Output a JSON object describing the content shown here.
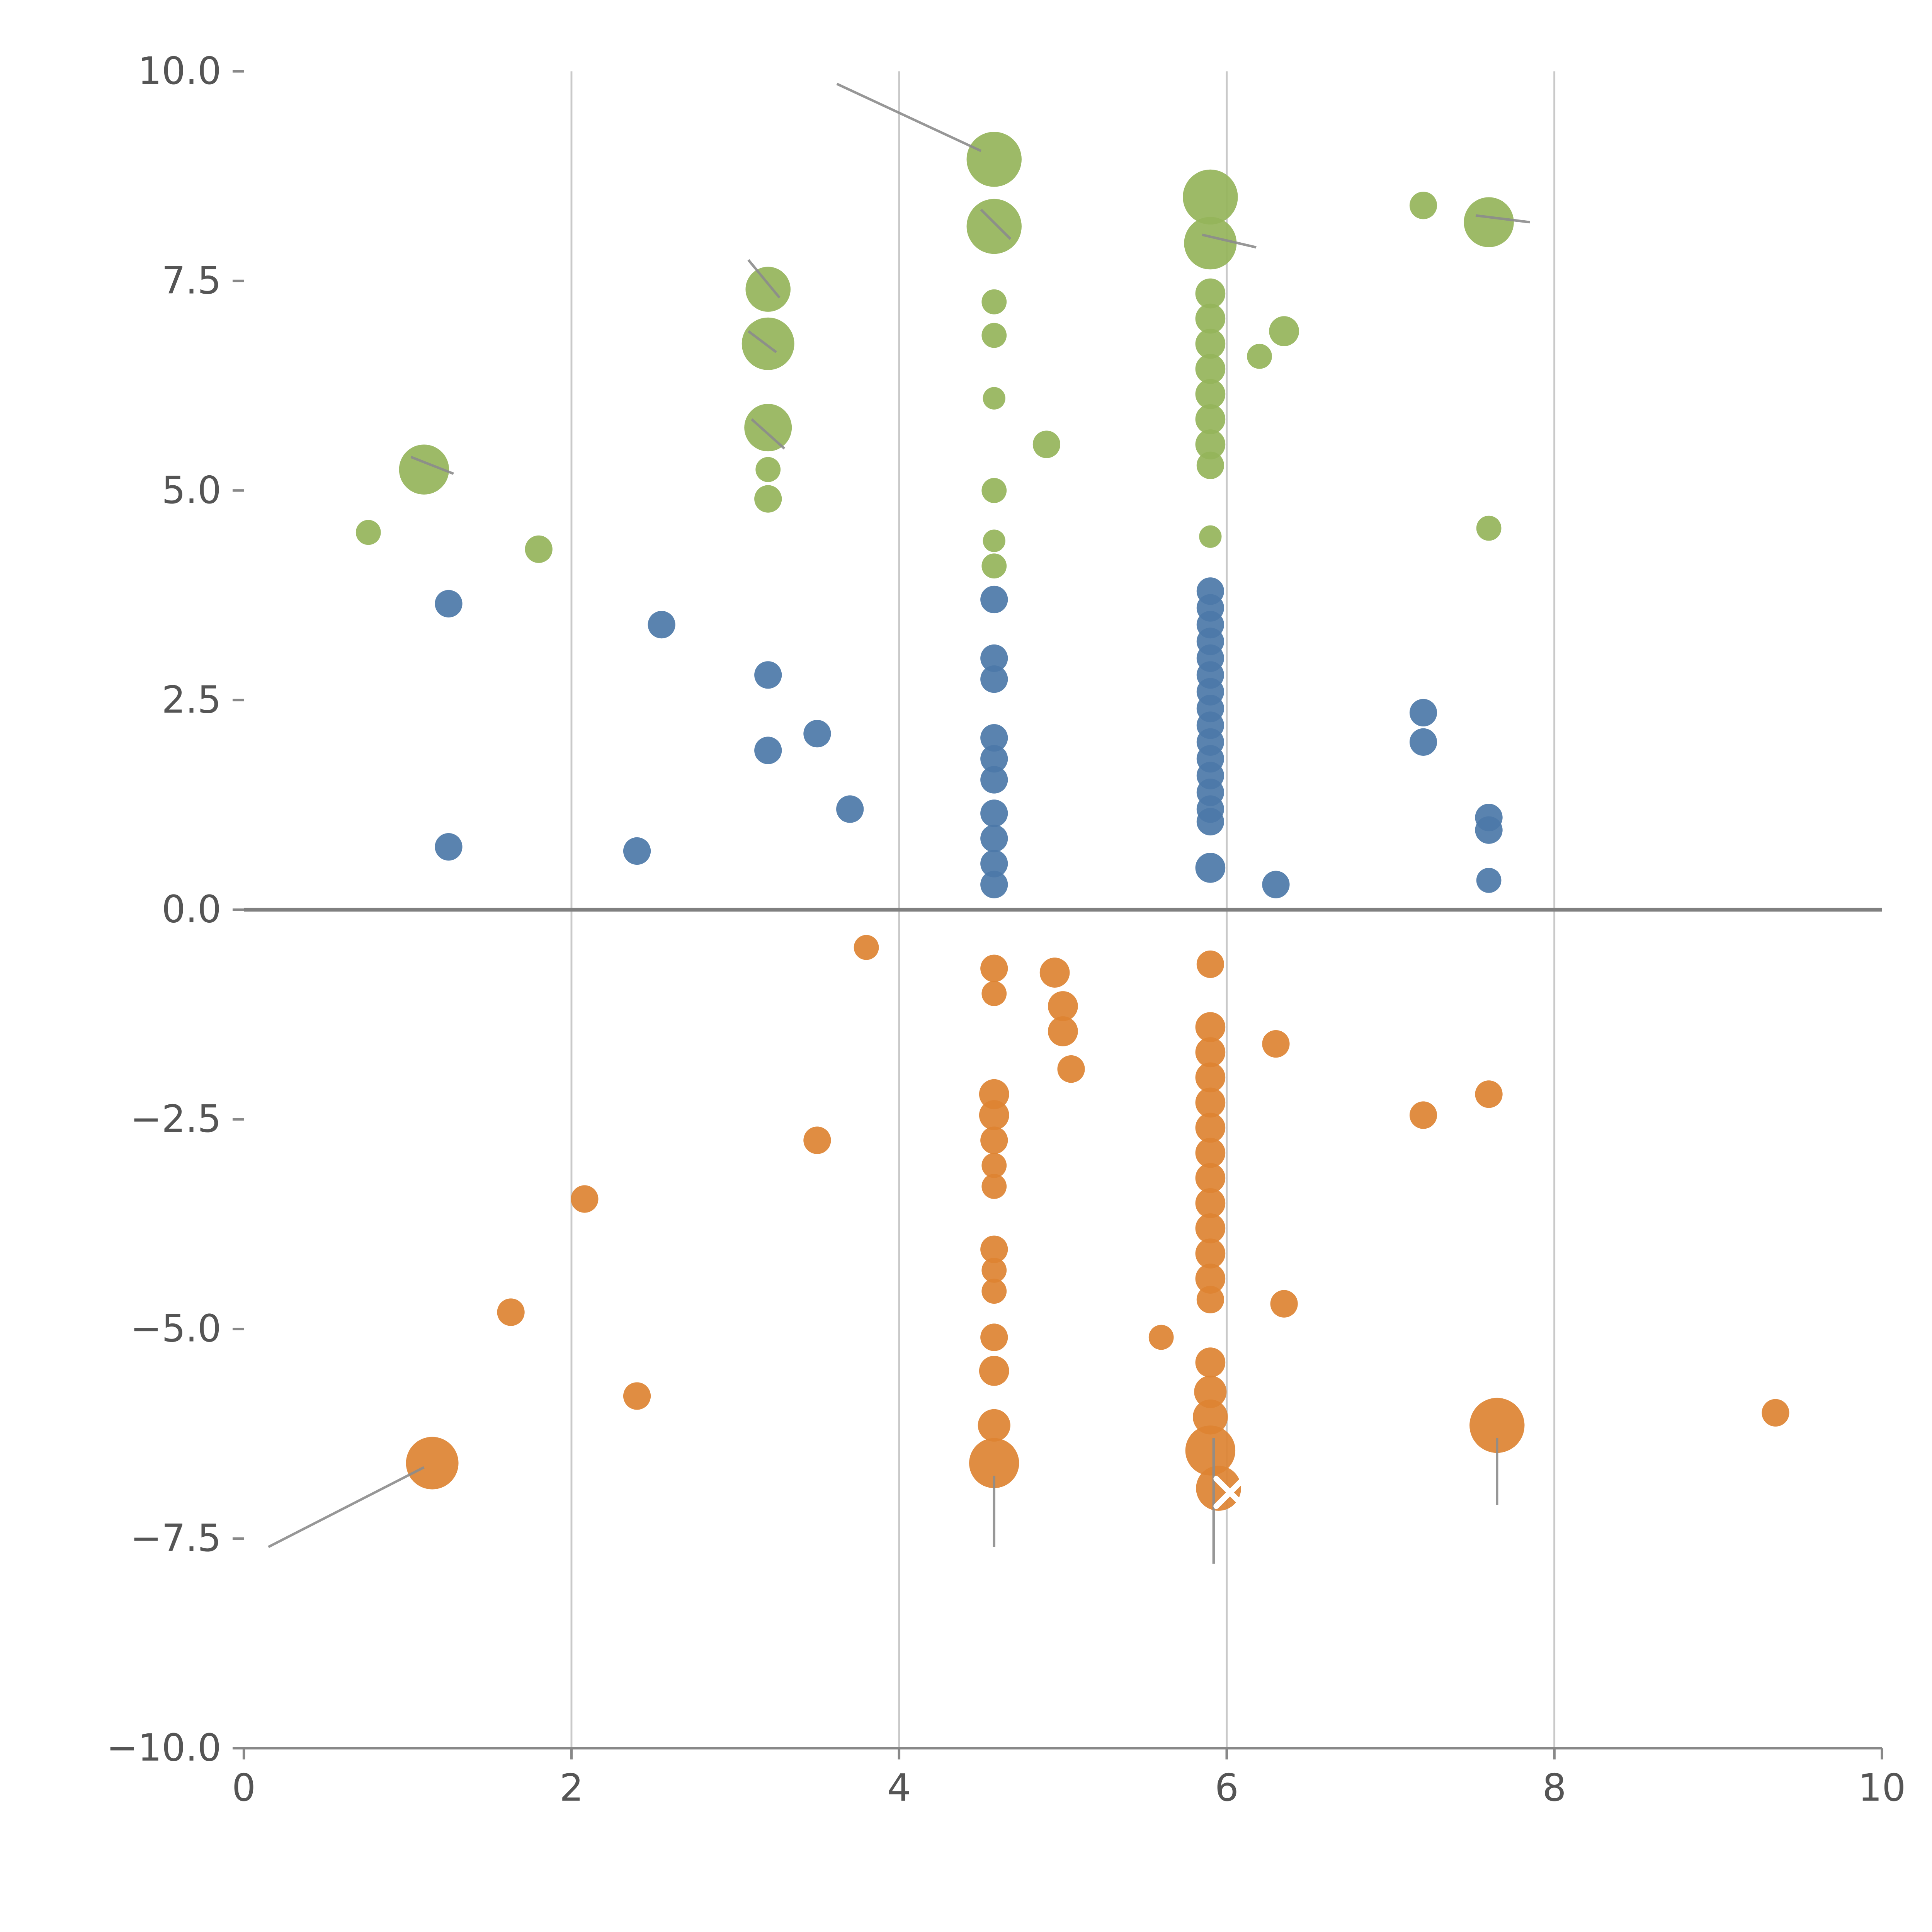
{
  "chart_data": {
    "type": "scatter",
    "title": "",
    "xlabel": "",
    "ylabel": "",
    "xlim": [
      0,
      10
    ],
    "ylim": [
      -10,
      10
    ],
    "x_ticks": [
      0,
      2,
      4,
      6,
      8,
      10
    ],
    "x_tick_labels": [
      "0",
      "2",
      "4",
      "6",
      "8",
      "10"
    ],
    "y_ticks": [
      10.0,
      7.5,
      5.0,
      2.5,
      0.0,
      -2.5,
      -5.0,
      -7.5,
      -10.0
    ],
    "y_tick_labels": [
      "10.0",
      "7.5",
      "5.0",
      "2.5",
      "0.0",
      "−2.5",
      "−5.0",
      "−7.5",
      "−10.0"
    ],
    "grid": {
      "vertical_x": [
        2,
        4,
        6,
        8
      ],
      "color": "#c9c9c9"
    },
    "zero_line": {
      "y": 0,
      "color": "#808080",
      "width": 3
    },
    "spine_color": "#888888",
    "tick_color": "#555555",
    "legend_position": "none",
    "series": [
      {
        "name": "green-bubbles",
        "color": "#95b45a",
        "points": [
          [
            0.76,
            4.5,
            10
          ],
          [
            1.1,
            5.25,
            20
          ],
          [
            1.8,
            4.3,
            11
          ],
          [
            3.2,
            7.4,
            18
          ],
          [
            3.2,
            6.75,
            21
          ],
          [
            3.2,
            5.75,
            19
          ],
          [
            3.2,
            5.25,
            10
          ],
          [
            3.2,
            4.9,
            11
          ],
          [
            4.58,
            8.95,
            22
          ],
          [
            4.58,
            8.15,
            22
          ],
          [
            4.58,
            7.25,
            10
          ],
          [
            4.58,
            6.85,
            10
          ],
          [
            4.58,
            6.1,
            9
          ],
          [
            4.58,
            5.0,
            10
          ],
          [
            4.58,
            4.4,
            9
          ],
          [
            4.58,
            4.1,
            10
          ],
          [
            4.9,
            5.55,
            11
          ],
          [
            5.9,
            8.5,
            22
          ],
          [
            5.9,
            7.95,
            21
          ],
          [
            5.9,
            7.35,
            12
          ],
          [
            5.9,
            7.05,
            12
          ],
          [
            5.9,
            6.75,
            12
          ],
          [
            5.9,
            6.45,
            12
          ],
          [
            5.9,
            6.15,
            12
          ],
          [
            5.9,
            5.85,
            12
          ],
          [
            5.9,
            5.55,
            12
          ],
          [
            5.9,
            5.3,
            11
          ],
          [
            5.9,
            4.45,
            9
          ],
          [
            6.2,
            6.6,
            10
          ],
          [
            6.35,
            6.9,
            12
          ],
          [
            7.2,
            8.4,
            11
          ],
          [
            7.6,
            8.2,
            20
          ],
          [
            7.6,
            4.55,
            10
          ]
        ]
      },
      {
        "name": "blue-bubbles",
        "color": "#4c78a8",
        "points": [
          [
            1.25,
            3.65,
            11
          ],
          [
            1.25,
            0.75,
            11
          ],
          [
            2.4,
            0.7,
            11
          ],
          [
            2.55,
            3.4,
            11
          ],
          [
            3.2,
            2.8,
            11
          ],
          [
            3.2,
            1.9,
            11
          ],
          [
            3.5,
            2.1,
            11
          ],
          [
            3.7,
            1.2,
            11
          ],
          [
            4.58,
            3.7,
            11
          ],
          [
            4.58,
            3.0,
            11
          ],
          [
            4.58,
            2.75,
            11
          ],
          [
            4.58,
            2.05,
            11
          ],
          [
            4.58,
            1.8,
            11
          ],
          [
            4.58,
            1.55,
            11
          ],
          [
            4.58,
            1.15,
            11
          ],
          [
            4.58,
            0.85,
            11
          ],
          [
            4.58,
            0.55,
            11
          ],
          [
            4.58,
            0.3,
            11
          ],
          [
            5.9,
            3.8,
            11
          ],
          [
            5.9,
            3.6,
            11
          ],
          [
            5.9,
            3.4,
            11
          ],
          [
            5.9,
            3.2,
            11
          ],
          [
            5.9,
            3.0,
            11
          ],
          [
            5.9,
            2.8,
            11
          ],
          [
            5.9,
            2.6,
            11
          ],
          [
            5.9,
            2.4,
            11
          ],
          [
            5.9,
            2.2,
            11
          ],
          [
            5.9,
            2.0,
            11
          ],
          [
            5.9,
            1.8,
            11
          ],
          [
            5.9,
            1.6,
            11
          ],
          [
            5.9,
            1.4,
            11
          ],
          [
            5.9,
            1.2,
            11
          ],
          [
            5.9,
            1.05,
            11
          ],
          [
            5.9,
            0.5,
            12
          ],
          [
            6.3,
            0.3,
            11
          ],
          [
            7.2,
            2.35,
            11
          ],
          [
            7.2,
            2.0,
            11
          ],
          [
            7.6,
            1.1,
            11
          ],
          [
            7.6,
            0.95,
            11
          ],
          [
            7.6,
            0.35,
            10
          ]
        ]
      },
      {
        "name": "orange-bubbles",
        "color": "#dd8332",
        "points": [
          [
            1.15,
            -6.6,
            21
          ],
          [
            1.63,
            -4.8,
            11
          ],
          [
            2.08,
            -3.45,
            11
          ],
          [
            2.4,
            -5.8,
            11
          ],
          [
            3.5,
            -2.75,
            11
          ],
          [
            3.8,
            -0.45,
            10
          ],
          [
            4.58,
            -0.7,
            11
          ],
          [
            4.58,
            -1.0,
            10
          ],
          [
            4.58,
            -2.2,
            12
          ],
          [
            4.58,
            -2.45,
            12
          ],
          [
            4.58,
            -2.75,
            11
          ],
          [
            4.58,
            -3.05,
            10
          ],
          [
            4.58,
            -3.3,
            10
          ],
          [
            4.58,
            -4.05,
            11
          ],
          [
            4.58,
            -4.3,
            10
          ],
          [
            4.58,
            -4.55,
            10
          ],
          [
            4.58,
            -5.1,
            11
          ],
          [
            4.58,
            -5.5,
            12
          ],
          [
            4.58,
            -6.15,
            13
          ],
          [
            4.58,
            -6.6,
            20
          ],
          [
            4.95,
            -0.75,
            12
          ],
          [
            5.0,
            -1.15,
            12
          ],
          [
            5.0,
            -1.45,
            12
          ],
          [
            5.05,
            -1.9,
            11
          ],
          [
            5.6,
            -5.1,
            10
          ],
          [
            5.9,
            -0.65,
            11
          ],
          [
            5.9,
            -1.4,
            12
          ],
          [
            5.9,
            -1.7,
            12
          ],
          [
            5.9,
            -2.0,
            12
          ],
          [
            5.9,
            -2.3,
            12
          ],
          [
            5.9,
            -2.6,
            12
          ],
          [
            5.9,
            -2.9,
            12
          ],
          [
            5.9,
            -3.2,
            12
          ],
          [
            5.9,
            -3.5,
            12
          ],
          [
            5.9,
            -3.8,
            12
          ],
          [
            5.9,
            -4.1,
            12
          ],
          [
            5.9,
            -4.4,
            12
          ],
          [
            5.9,
            -4.65,
            11
          ],
          [
            5.9,
            -5.4,
            12
          ],
          [
            5.9,
            -5.75,
            13
          ],
          [
            5.9,
            -6.05,
            14
          ],
          [
            5.9,
            -6.45,
            20
          ],
          [
            5.95,
            -6.9,
            18
          ],
          [
            6.3,
            -1.6,
            11
          ],
          [
            6.35,
            -4.7,
            11
          ],
          [
            7.2,
            -2.45,
            11
          ],
          [
            7.6,
            -2.2,
            11
          ],
          [
            7.65,
            -6.15,
            22
          ],
          [
            9.35,
            -6.0,
            11
          ]
        ]
      }
    ],
    "annotations": {
      "line_color": "#8c8c8c",
      "lines": [
        [
          3.62,
          9.85,
          4.5,
          9.05
        ],
        [
          0.15,
          -7.6,
          1.1,
          -6.65
        ],
        [
          4.58,
          -6.75,
          4.58,
          -7.6
        ],
        [
          5.92,
          -6.3,
          5.92,
          -7.8
        ],
        [
          7.65,
          -6.3,
          7.65,
          -7.1
        ],
        [
          3.08,
          7.75,
          3.27,
          7.3
        ],
        [
          4.5,
          8.35,
          4.68,
          8.0
        ],
        [
          5.85,
          8.05,
          6.18,
          7.9
        ],
        [
          7.52,
          8.28,
          7.85,
          8.2
        ],
        [
          3.1,
          5.85,
          3.3,
          5.5
        ],
        [
          1.02,
          5.4,
          1.28,
          5.2
        ],
        [
          3.08,
          6.9,
          3.25,
          6.65
        ]
      ],
      "x_marker": {
        "x": 6.02,
        "y": -6.95,
        "half_size": 11,
        "color": "#ffffff",
        "stroke_width": 4.5
      }
    }
  }
}
